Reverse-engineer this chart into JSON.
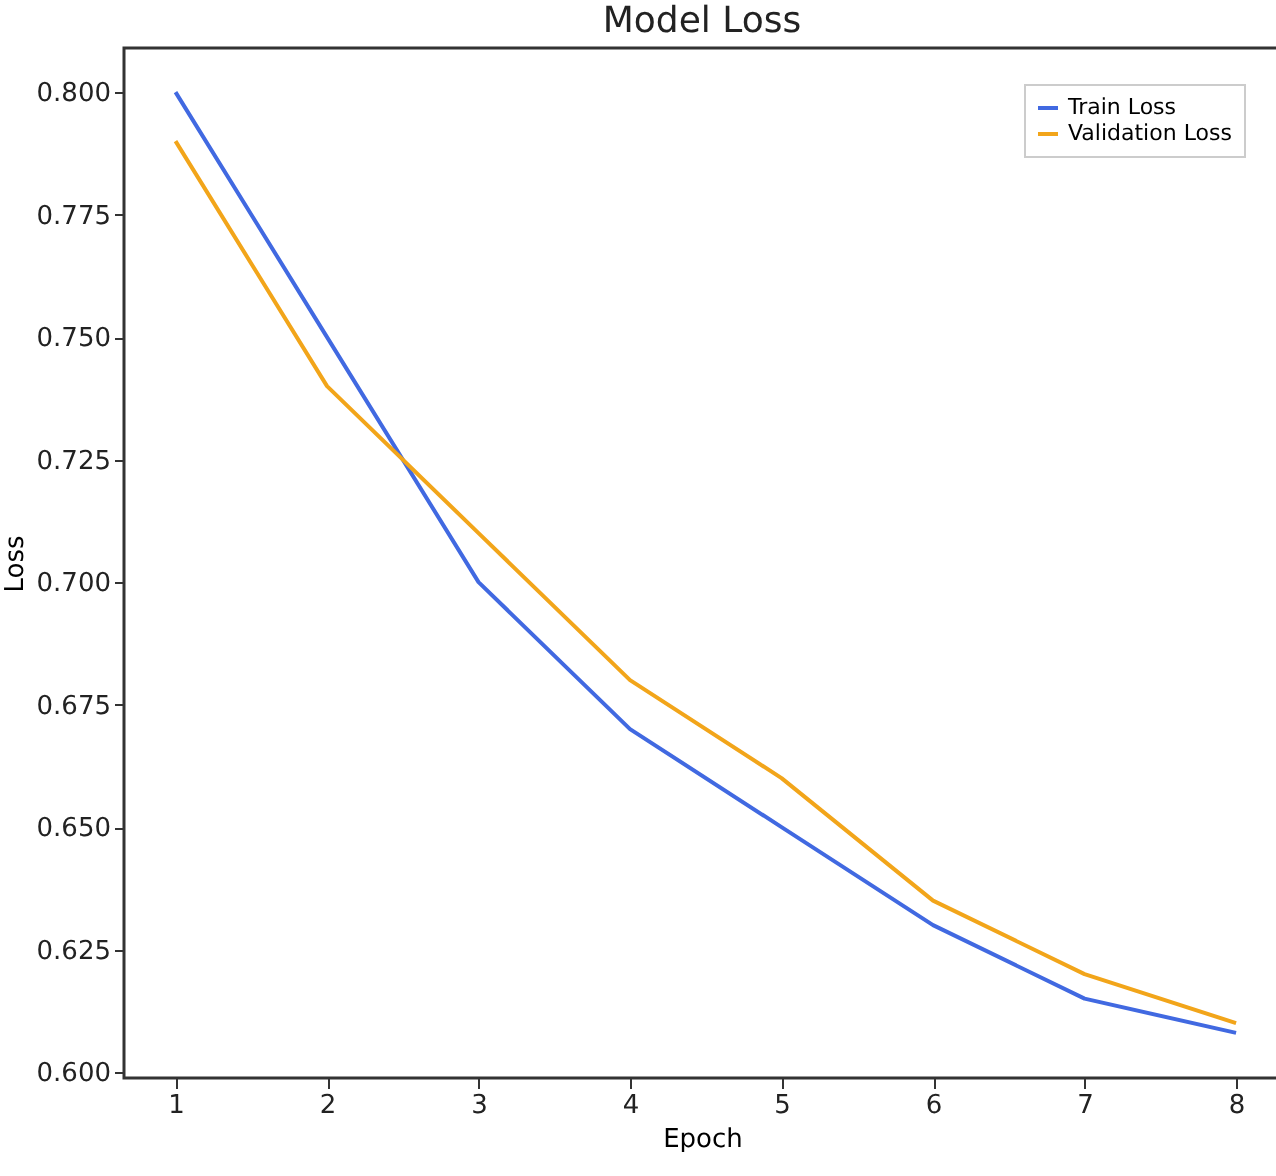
{
  "chart_data": {
    "type": "line",
    "title": "Model Loss",
    "xlabel": "Epoch",
    "ylabel": "Loss",
    "x": [
      1,
      2,
      3,
      4,
      5,
      6,
      7,
      8
    ],
    "series": [
      {
        "name": "Train Loss",
        "color": "#4169e1",
        "values": [
          0.8,
          0.75,
          0.7,
          0.67,
          0.65,
          0.63,
          0.615,
          0.608
        ]
      },
      {
        "name": "Validation Loss",
        "color": "#f2a51a",
        "values": [
          0.79,
          0.74,
          0.71,
          0.68,
          0.66,
          0.635,
          0.62,
          0.61
        ]
      }
    ],
    "xlim": [
      0.66,
      8.29
    ],
    "xticks": [
      1,
      2,
      3,
      4,
      5,
      6,
      7,
      8
    ],
    "ylim": [
      0.5988,
      0.809
    ],
    "yticks": [
      {
        "value": 0.6,
        "label": "0.600"
      },
      0.625,
      {
        "value": 0.65,
        "label": "0.650"
      },
      0.675,
      {
        "value": 0.7,
        "label": "0.700"
      },
      0.725,
      {
        "value": 0.75,
        "label": "0.750"
      },
      0.775,
      {
        "value": 0.8,
        "label": "0.800"
      }
    ],
    "grid": false,
    "legend": "top right",
    "marker": "none",
    "line_style": "solid"
  }
}
